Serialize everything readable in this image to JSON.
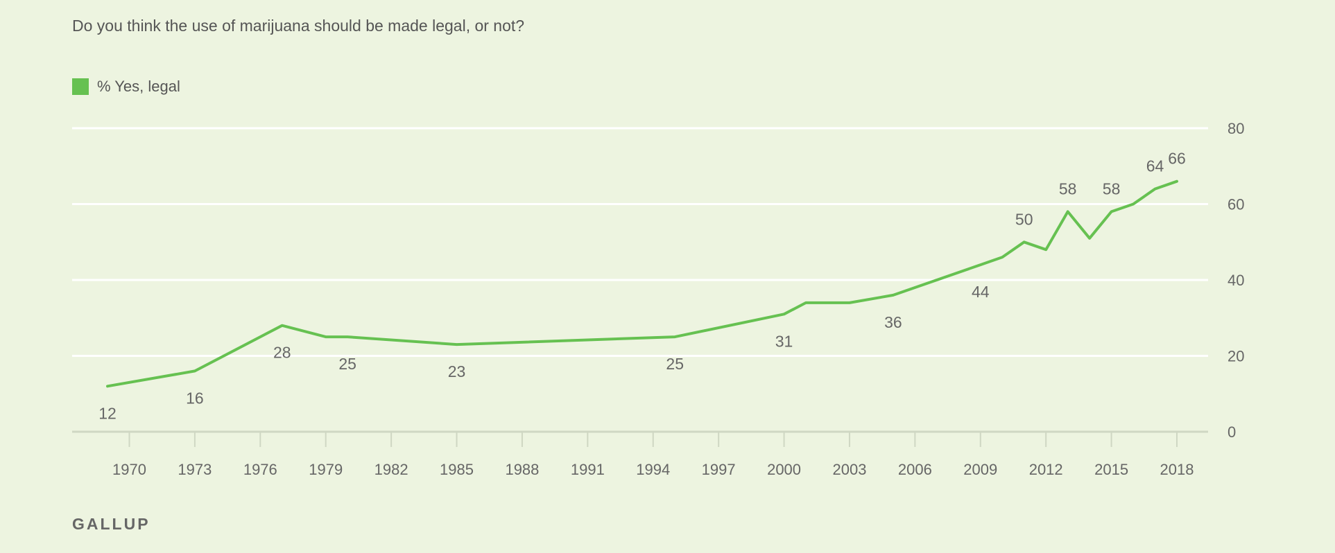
{
  "question": "Do you think the use of marijuana should be made legal, or not?",
  "footer": "GALLUP",
  "colors": {
    "line": "#66c151",
    "grid": "#ffffff",
    "axis": "#cfd7c3",
    "text": "#666666"
  },
  "chart_data": {
    "type": "line",
    "title": "Do you think the use of marijuana should be made legal, or not?",
    "legend": "top-left",
    "grid": true,
    "xlim": [
      1968,
      2019
    ],
    "ylim": [
      0,
      80
    ],
    "x_ticks": [
      1970,
      1973,
      1976,
      1979,
      1982,
      1985,
      1988,
      1991,
      1994,
      1997,
      2000,
      2003,
      2006,
      2009,
      2012,
      2015,
      2018
    ],
    "y_ticks": [
      0,
      20,
      40,
      60,
      80
    ],
    "series": [
      {
        "name": "% Yes, legal",
        "color": "#66c151",
        "points": [
          {
            "x": 1969,
            "y": 12,
            "label": "12",
            "label_pos": "below"
          },
          {
            "x": 1972,
            "y": 15
          },
          {
            "x": 1973,
            "y": 16,
            "label": "16",
            "label_pos": "below"
          },
          {
            "x": 1977,
            "y": 28,
            "label": "28",
            "label_pos": "below"
          },
          {
            "x": 1979,
            "y": 25
          },
          {
            "x": 1980,
            "y": 25,
            "label": "25",
            "label_pos": "below"
          },
          {
            "x": 1985,
            "y": 23,
            "label": "23",
            "label_pos": "below"
          },
          {
            "x": 1995,
            "y": 25,
            "label": "25",
            "label_pos": "below"
          },
          {
            "x": 2000,
            "y": 31,
            "label": "31",
            "label_pos": "below"
          },
          {
            "x": 2001,
            "y": 34
          },
          {
            "x": 2003,
            "y": 34
          },
          {
            "x": 2005,
            "y": 36,
            "label": "36",
            "label_pos": "below"
          },
          {
            "x": 2009,
            "y": 44,
            "label": "44",
            "label_pos": "below"
          },
          {
            "x": 2010,
            "y": 46
          },
          {
            "x": 2011,
            "y": 50,
            "label": "50",
            "label_pos": "above"
          },
          {
            "x": 2012,
            "y": 48
          },
          {
            "x": 2013,
            "y": 58,
            "label": "58",
            "label_pos": "above"
          },
          {
            "x": 2014,
            "y": 51
          },
          {
            "x": 2015,
            "y": 58,
            "label": "58",
            "label_pos": "above"
          },
          {
            "x": 2016,
            "y": 60
          },
          {
            "x": 2017,
            "y": 64,
            "label": "64",
            "label_pos": "above"
          },
          {
            "x": 2018,
            "y": 66,
            "label": "66",
            "label_pos": "above"
          }
        ]
      }
    ]
  }
}
